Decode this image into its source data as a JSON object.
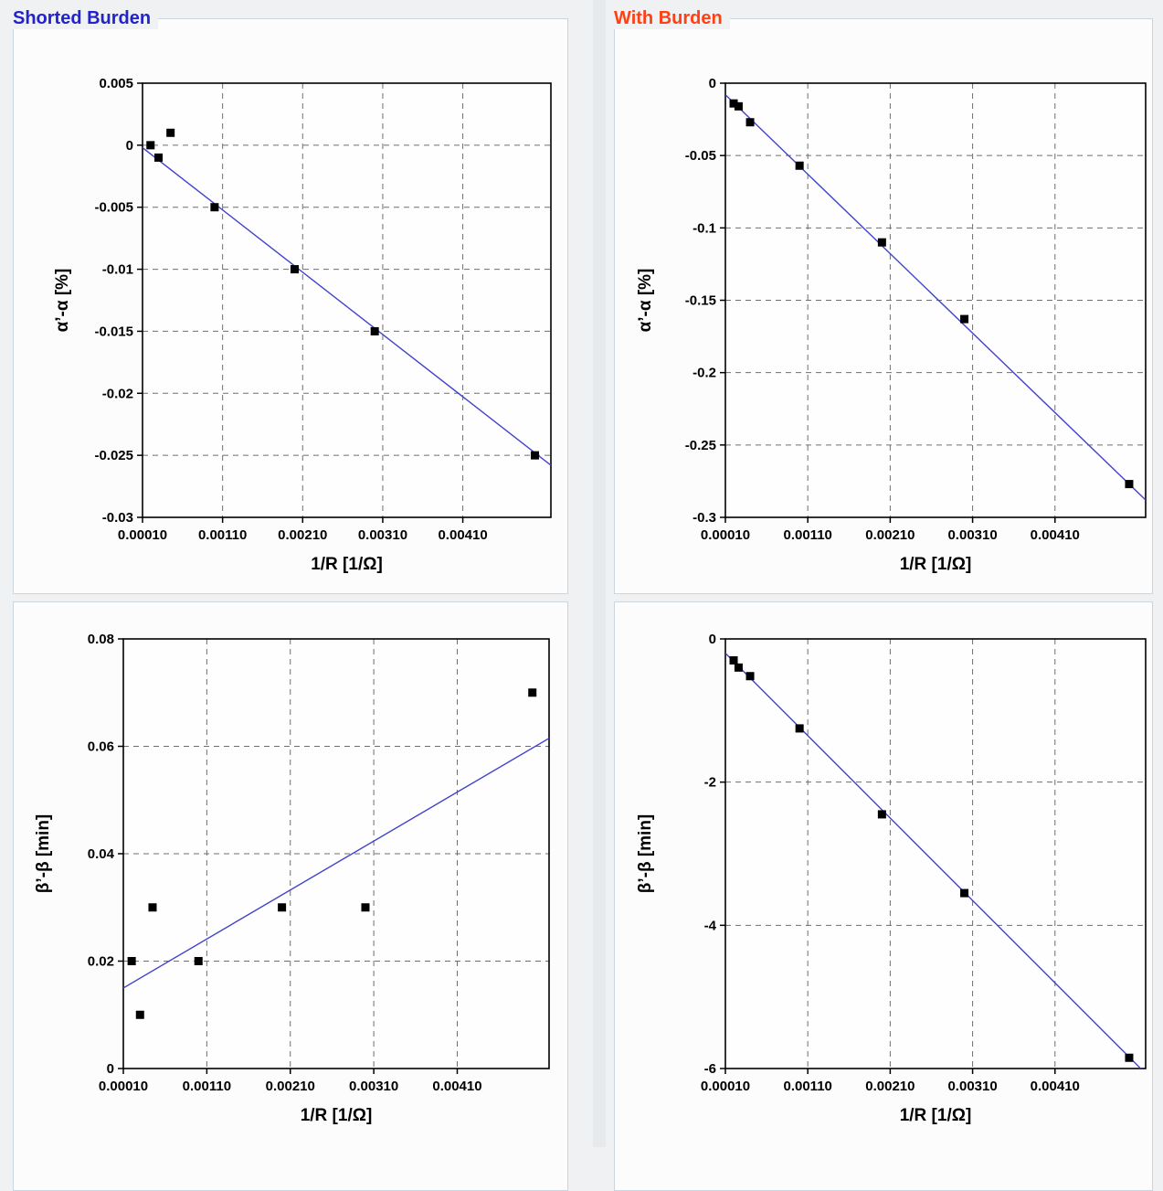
{
  "page": {
    "background": "#eff1f2"
  },
  "panels": {
    "shorted": {
      "title": "Shorted Burden",
      "color": "#2323cb"
    },
    "burden": {
      "title": "With Burden",
      "color": "#ff4014"
    }
  },
  "chart_data": [
    {
      "id": "alpha-shorted",
      "type": "scatter",
      "group": "Shorted Burden",
      "xlabel": "1/R [1/Ω]",
      "ylabel": "α’-α [%]",
      "xlim": [
        0.0001,
        0.0052
      ],
      "ylim": [
        -0.03,
        0.005
      ],
      "xticks": [
        0.0001,
        0.0011,
        0.0021,
        0.0031,
        0.0041
      ],
      "xtick_labels": [
        "0.00010",
        "0.00110",
        "0.00210",
        "0.00310",
        "0.00410"
      ],
      "yticks": [
        0.005,
        0,
        -0.005,
        -0.01,
        -0.015,
        -0.02,
        -0.025,
        -0.03
      ],
      "ytick_labels": [
        "0.005",
        "0",
        "-0.005",
        "-0.01",
        "-0.015",
        "-0.02",
        "-0.025",
        "-0.03"
      ],
      "points": [
        [
          0.0002,
          0.0
        ],
        [
          0.0003,
          -0.001
        ],
        [
          0.00045,
          0.001
        ],
        [
          0.001,
          -0.005
        ],
        [
          0.002,
          -0.01
        ],
        [
          0.003,
          -0.015
        ],
        [
          0.005,
          -0.025
        ]
      ],
      "trend": [
        [
          0.0001,
          -0.0002
        ],
        [
          0.0052,
          -0.0258
        ]
      ],
      "grid": true,
      "line_color": "#4242cd",
      "marker_color": "#000000"
    },
    {
      "id": "alpha-burden",
      "type": "scatter",
      "group": "With Burden",
      "xlabel": "1/R [1/Ω]",
      "ylabel": "α’-α [%]",
      "xlim": [
        0.0001,
        0.0052
      ],
      "ylim": [
        -0.3,
        0
      ],
      "xticks": [
        0.0001,
        0.0011,
        0.0021,
        0.0031,
        0.0041
      ],
      "xtick_labels": [
        "0.00010",
        "0.00110",
        "0.00210",
        "0.00310",
        "0.00410"
      ],
      "yticks": [
        0,
        -0.05,
        -0.1,
        -0.15,
        -0.2,
        -0.25,
        -0.3
      ],
      "ytick_labels": [
        "0",
        "-0.05",
        "-0.1",
        "-0.15",
        "-0.2",
        "-0.25",
        "-0.3"
      ],
      "points": [
        [
          0.0002,
          -0.014
        ],
        [
          0.00026,
          -0.016
        ],
        [
          0.0004,
          -0.027
        ],
        [
          0.001,
          -0.057
        ],
        [
          0.002,
          -0.11
        ],
        [
          0.003,
          -0.163
        ],
        [
          0.005,
          -0.277
        ]
      ],
      "trend": [
        [
          0.0001,
          -0.008
        ],
        [
          0.0052,
          -0.288
        ]
      ],
      "grid": true,
      "line_color": "#4242cd",
      "marker_color": "#000000"
    },
    {
      "id": "beta-shorted",
      "type": "scatter",
      "group": "Shorted Burden",
      "xlabel": "1/R [1/Ω]",
      "ylabel": "β’-β [min]",
      "xlim": [
        0.0001,
        0.0052
      ],
      "ylim": [
        0,
        0.08
      ],
      "xticks": [
        0.0001,
        0.0011,
        0.0021,
        0.0031,
        0.0041
      ],
      "xtick_labels": [
        "0.00010",
        "0.00110",
        "0.00210",
        "0.00310",
        "0.00410"
      ],
      "yticks": [
        0.08,
        0.06,
        0.04,
        0.02,
        0
      ],
      "ytick_labels": [
        "0.08",
        "0.06",
        "0.04",
        "0.02",
        "0"
      ],
      "points": [
        [
          0.0002,
          0.02
        ],
        [
          0.0003,
          0.01
        ],
        [
          0.00045,
          0.03
        ],
        [
          0.001,
          0.02
        ],
        [
          0.002,
          0.03
        ],
        [
          0.003,
          0.03
        ],
        [
          0.005,
          0.07
        ]
      ],
      "trend": [
        [
          0.0001,
          0.015
        ],
        [
          0.0052,
          0.0615
        ]
      ],
      "grid": true,
      "line_color": "#4242cd",
      "marker_color": "#000000"
    },
    {
      "id": "beta-burden",
      "type": "scatter",
      "group": "With Burden",
      "xlabel": "1/R [1/Ω]",
      "ylabel": "β’-β [min]",
      "xlim": [
        0.0001,
        0.0052
      ],
      "ylim": [
        -6,
        0
      ],
      "xticks": [
        0.0001,
        0.0011,
        0.0021,
        0.0031,
        0.0041
      ],
      "xtick_labels": [
        "0.00010",
        "0.00110",
        "0.00210",
        "0.00310",
        "0.00410"
      ],
      "yticks": [
        0,
        -2,
        -4,
        -6
      ],
      "ytick_labels": [
        "0",
        "-2",
        "-4",
        "-6"
      ],
      "points": [
        [
          0.0002,
          -0.3
        ],
        [
          0.00026,
          -0.4
        ],
        [
          0.0004,
          -0.52
        ],
        [
          0.001,
          -1.25
        ],
        [
          0.002,
          -2.45
        ],
        [
          0.003,
          -3.55
        ],
        [
          0.005,
          -5.85
        ]
      ],
      "trend": [
        [
          0.0001,
          -0.2
        ],
        [
          0.0052,
          -6.07
        ]
      ],
      "grid": true,
      "line_color": "#4242cd",
      "marker_color": "#000000"
    }
  ]
}
